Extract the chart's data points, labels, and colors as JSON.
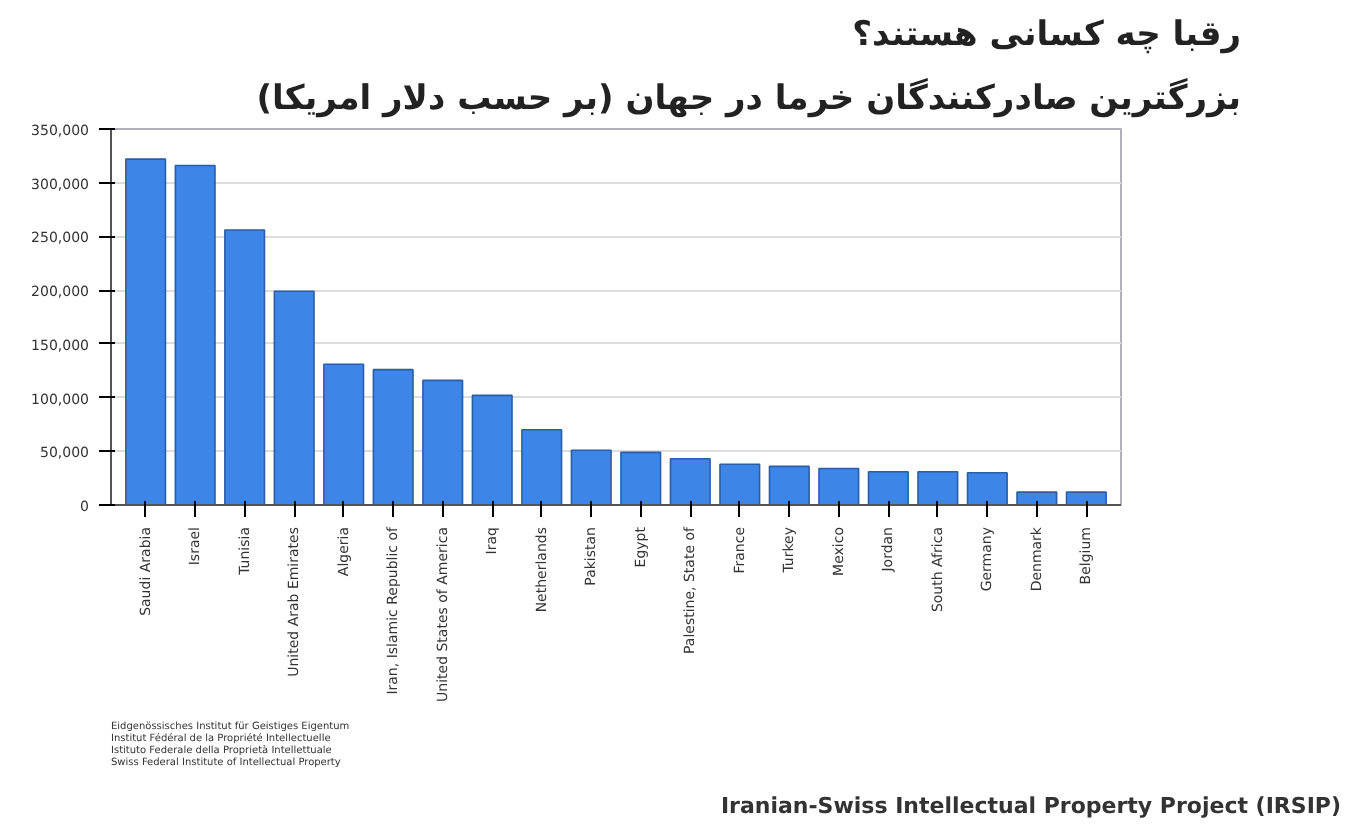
{
  "chart_data": {
    "type": "bar",
    "title": "رقبا چه کسانی هستند؟",
    "subtitle": "بزرگترین صادرکنندگان خرما در جهان (بر حسب دلار امریکا)",
    "categories": [
      "Saudi Arabia",
      "Israel",
      "Tunisia",
      "United Arab Emirates",
      "Algeria",
      "Iran, Islamic Republic of",
      "United States of America",
      "Iraq",
      "Netherlands",
      "Pakistan",
      "Egypt",
      "Palestine, State of",
      "France",
      "Turkey",
      "Mexico",
      "Jordan",
      "South Africa",
      "Germany",
      "Denmark",
      "Belgium"
    ],
    "values": [
      322000,
      316000,
      256000,
      199000,
      131000,
      126000,
      116000,
      102000,
      70000,
      51000,
      49000,
      43000,
      38000,
      36000,
      34000,
      31000,
      31000,
      30000,
      12000,
      12000
    ],
    "color": "#3d85e6",
    "ylim": [
      0,
      350000
    ],
    "yticks": [
      {
        "value": 0,
        "label": "0"
      },
      {
        "value": 50000,
        "label": "50,000"
      },
      {
        "value": 100000,
        "label": "100,000"
      },
      {
        "value": 150000,
        "label": "150,000"
      },
      {
        "value": 200000,
        "label": "200,000"
      },
      {
        "value": 250000,
        "label": "250,000"
      },
      {
        "value": 300000,
        "label": "300,000"
      },
      {
        "value": 350000,
        "label": "350,000"
      }
    ],
    "grid": "y",
    "annotations": [
      "Eidgenössisches Institut für Geistiges Eigentum\nInstitut Fédéral de la Propriété Intellectuelle\nIstituto Federale della Proprietà Intellettuale\nSwiss Federal Institute of Intellectual Property",
      "Iranian-Swiss Intellectual Property Project (IRSIP)"
    ]
  }
}
